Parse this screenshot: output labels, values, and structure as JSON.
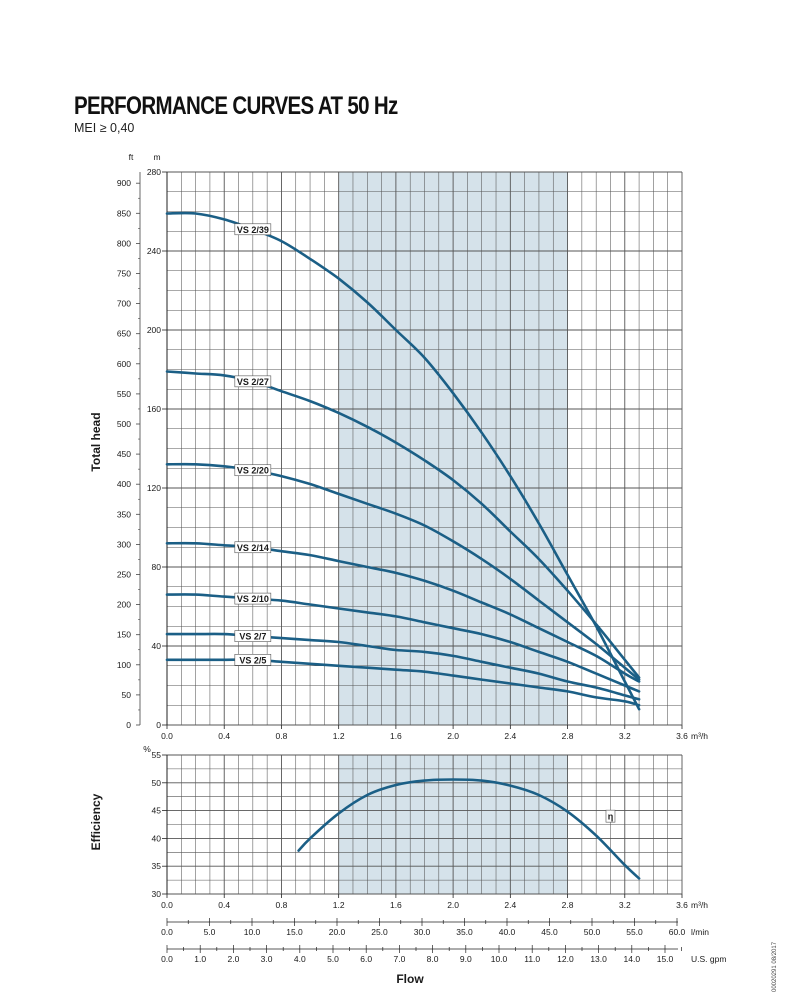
{
  "title": "PERFORMANCE CURVES AT 50 Hz",
  "subtitle": "MEI ≥ 0,40",
  "doc_code": "00020291 08/2017",
  "colors": {
    "curve": "#1b5f86",
    "band": "#d5e2ea",
    "grid": "#555555"
  },
  "chart_data": [
    {
      "type": "line",
      "ylabel": "Total head",
      "band_x": [
        1.2,
        2.8
      ],
      "x_units": "m³/h",
      "x_ticks": [
        "0.0",
        "0.4",
        "0.8",
        "1.2",
        "1.6",
        "2.0",
        "2.4",
        "2.8",
        "3.2",
        "3.6"
      ],
      "xlim": [
        0,
        3.6
      ],
      "ylim_m": [
        0,
        280
      ],
      "ylim_ft": [
        0,
        918.6
      ],
      "y_unit_left": "ft",
      "y_unit_right": "m",
      "y_ticks_ft": [
        "0",
        "50",
        "100",
        "150",
        "200",
        "250",
        "300",
        "350",
        "400",
        "450",
        "500",
        "550",
        "600",
        "650",
        "700",
        "750",
        "800",
        "850",
        "900"
      ],
      "y_ticks_m": [
        "0",
        "40",
        "80",
        "120",
        "160",
        "200",
        "240",
        "280"
      ],
      "series": [
        {
          "name": "VS 2/39",
          "label_at": 0.6,
          "x": [
            0,
            0.2,
            0.4,
            0.6,
            0.8,
            1.0,
            1.2,
            1.4,
            1.6,
            1.8,
            2.0,
            2.2,
            2.4,
            2.6,
            2.8,
            3.0,
            3.2,
            3.3
          ],
          "values": [
            259,
            259,
            256,
            251,
            245,
            236,
            226,
            214,
            200,
            186,
            168,
            148,
            126,
            102,
            76,
            50,
            22,
            8
          ]
        },
        {
          "name": "VS 2/27",
          "label_at": 0.6,
          "x": [
            0,
            0.2,
            0.4,
            0.6,
            0.8,
            1.0,
            1.2,
            1.4,
            1.6,
            1.8,
            2.0,
            2.2,
            2.4,
            2.6,
            2.8,
            3.0,
            3.2,
            3.3
          ],
          "values": [
            179,
            178,
            177,
            174,
            169,
            164,
            158,
            151,
            143,
            134,
            124,
            112,
            98,
            84,
            68,
            51,
            33,
            24
          ]
        },
        {
          "name": "VS 2/20",
          "label_at": 0.6,
          "x": [
            0,
            0.2,
            0.4,
            0.6,
            0.8,
            1.0,
            1.2,
            1.4,
            1.6,
            1.8,
            2.0,
            2.2,
            2.4,
            2.6,
            2.8,
            3.0,
            3.2,
            3.3
          ],
          "values": [
            132,
            132,
            131,
            129,
            126,
            122,
            117,
            112,
            107,
            101,
            93,
            84,
            74,
            63,
            52,
            41,
            29,
            23
          ]
        },
        {
          "name": "VS 2/14",
          "label_at": 0.6,
          "x": [
            0,
            0.2,
            0.4,
            0.6,
            0.8,
            1.0,
            1.2,
            1.4,
            1.6,
            1.8,
            2.0,
            2.2,
            2.4,
            2.6,
            2.8,
            3.0,
            3.2,
            3.3
          ],
          "values": [
            92,
            92,
            91,
            90,
            88,
            86,
            83,
            80,
            77,
            73,
            68,
            62,
            56,
            49,
            42,
            35,
            26,
            22
          ]
        },
        {
          "name": "VS 2/10",
          "label_at": 0.6,
          "x": [
            0,
            0.2,
            0.4,
            0.6,
            0.8,
            1.0,
            1.2,
            1.4,
            1.6,
            1.8,
            2.0,
            2.2,
            2.4,
            2.6,
            2.8,
            3.0,
            3.2,
            3.3
          ],
          "values": [
            66,
            66,
            65,
            64,
            63,
            61,
            59,
            57,
            55,
            52,
            49,
            46,
            42,
            37,
            32,
            26,
            20,
            17
          ]
        },
        {
          "name": "VS 2/7",
          "label_at": 0.6,
          "x": [
            0,
            0.2,
            0.4,
            0.6,
            0.8,
            1.0,
            1.2,
            1.4,
            1.6,
            1.8,
            2.0,
            2.2,
            2.4,
            2.6,
            2.8,
            3.0,
            3.2,
            3.3
          ],
          "values": [
            46,
            46,
            46,
            45,
            44,
            43,
            42,
            40,
            38,
            37,
            35,
            32,
            29,
            26,
            22,
            19,
            15,
            13
          ]
        },
        {
          "name": "VS 2/5",
          "label_at": 0.6,
          "x": [
            0,
            0.2,
            0.4,
            0.6,
            0.8,
            1.0,
            1.2,
            1.4,
            1.6,
            1.8,
            2.0,
            2.2,
            2.4,
            2.6,
            2.8,
            3.0,
            3.2,
            3.3
          ],
          "values": [
            33,
            33,
            33,
            33,
            32,
            31,
            30,
            29,
            28,
            27,
            25,
            23,
            21,
            19,
            17,
            14,
            12,
            10
          ]
        }
      ]
    },
    {
      "type": "line",
      "ylabel": "Efficiency",
      "xlabel": "Flow",
      "band_x": [
        1.2,
        2.8
      ],
      "y_unit": "%",
      "ylim": [
        30,
        55
      ],
      "y_ticks": [
        "30",
        "35",
        "40",
        "45",
        "50",
        "55"
      ],
      "xlim": [
        0,
        3.6
      ],
      "x_ticks": [
        "0.0",
        "0.4",
        "0.8",
        "1.2",
        "1.6",
        "2.0",
        "2.4",
        "2.8",
        "3.2",
        "3.6"
      ],
      "x_units": "m³/h",
      "x_ticks_lmin": [
        "0.0",
        "5.0",
        "10.0",
        "15.0",
        "20.0",
        "25.0",
        "30.0",
        "35.0",
        "40.0",
        "45.0",
        "50.0",
        "55.0",
        "60.0"
      ],
      "x_units_lmin": "l/min",
      "x_ticks_gpm": [
        "0.0",
        "1.0",
        "2.0",
        "3.0",
        "4.0",
        "5.0",
        "6.0",
        "7.0",
        "8.0",
        "9.0",
        "10.0",
        "11.0",
        "12.0",
        "13.0",
        "14.0",
        "15.0"
      ],
      "x_units_gpm": "U.S. gpm",
      "series": [
        {
          "name": "η",
          "label_at": 3.1,
          "x": [
            0.92,
            1.0,
            1.2,
            1.4,
            1.6,
            1.8,
            2.0,
            2.2,
            2.4,
            2.6,
            2.8,
            3.0,
            3.2,
            3.3
          ],
          "values": [
            37.8,
            40.0,
            44.5,
            47.8,
            49.6,
            50.4,
            50.6,
            50.4,
            49.5,
            47.8,
            44.8,
            40.5,
            35.2,
            32.8
          ]
        }
      ]
    }
  ]
}
